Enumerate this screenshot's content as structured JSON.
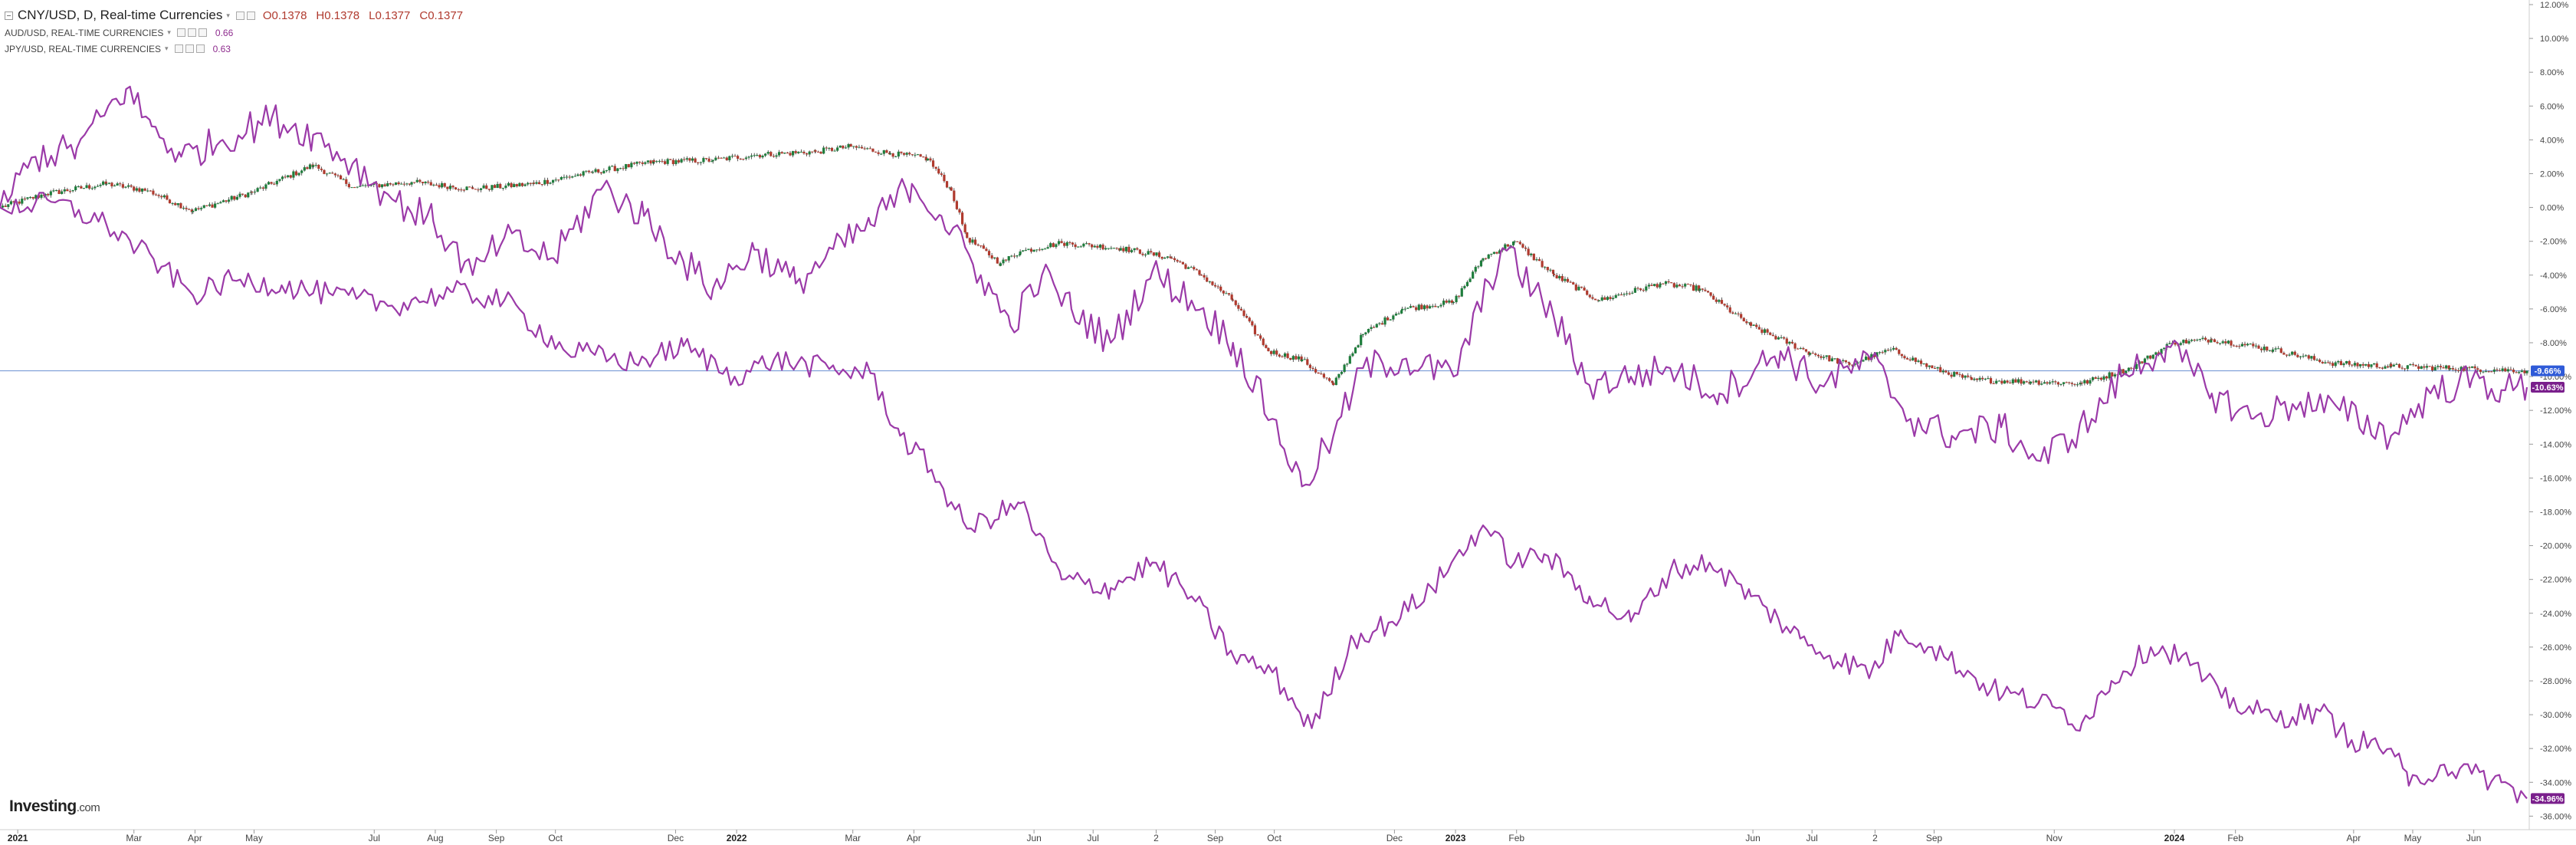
{
  "legend": {
    "main": {
      "title": "CNY/USD, D, Real-time Currencies",
      "open": "O0.1378",
      "high": "H0.1378",
      "low": "L0.1377",
      "close": "C0.1377"
    },
    "series": [
      {
        "label": "AUD/USD, REAL-TIME CURRENCIES",
        "value": "0.66"
      },
      {
        "label": "JPY/USD, REAL-TIME CURRENCIES",
        "value": "0.63"
      }
    ]
  },
  "logo": {
    "text": "Investing",
    "suffix": ".com"
  },
  "colors": {
    "candle_up": "#1e7d3c",
    "candle_down": "#b03a2e",
    "comparison_line": "#9b3aa8",
    "current_level_line": "#7a9cd6",
    "badge_blue": "#2f5bd8",
    "badge_purple": "#7a1f8c"
  },
  "badges": [
    {
      "text": "-9.66%",
      "value": -9.66,
      "color": "#2f5bd8"
    },
    {
      "text": "-10.63%",
      "value": -10.63,
      "color": "#7a1f8c"
    },
    {
      "text": "-34.96%",
      "value": -34.96,
      "color": "#7a1f8c"
    }
  ],
  "chart_data": {
    "type": "line",
    "description_of_scale": "percent",
    "ylim": [
      -36.8,
      12.0
    ],
    "y_ticks": [
      12,
      10,
      8,
      6,
      4,
      2,
      0,
      -2,
      -4,
      -6,
      -8,
      -10,
      -12,
      -14,
      -16,
      -18,
      -20,
      -22,
      -24,
      -26,
      -28,
      -30,
      -32,
      -34,
      -36
    ],
    "y_tick_labels": [
      "12.00%",
      "10.00%",
      "8.00%",
      "6.00%",
      "4.00%",
      "2.00%",
      "0.00%",
      "-2.00%",
      "-4.00%",
      "-6.00%",
      "-8.00%",
      "-10.00%",
      "-12.00%",
      "-14.00%",
      "-16.00%",
      "-18.00%",
      "-20.00%",
      "-22.00%",
      "-24.00%",
      "-26.00%",
      "-28.00%",
      "-30.00%",
      "-32.00%",
      "-34.00%",
      "-36.00%"
    ],
    "xlim": [
      "2020-12-23",
      "2024-06-28"
    ],
    "x_ticks": [
      {
        "label": "2021",
        "date": "2021-01-01",
        "bold": true
      },
      {
        "label": "Mar",
        "date": "2021-03-01"
      },
      {
        "label": "Apr",
        "date": "2021-04-01"
      },
      {
        "label": "May",
        "date": "2021-05-01"
      },
      {
        "label": "Jul",
        "date": "2021-07-01"
      },
      {
        "label": "Aug",
        "date": "2021-08-01"
      },
      {
        "label": "Sep",
        "date": "2021-09-01"
      },
      {
        "label": "Oct",
        "date": "2021-10-01"
      },
      {
        "label": "Dec",
        "date": "2021-12-01"
      },
      {
        "label": "2022",
        "date": "2022-01-01",
        "bold": true
      },
      {
        "label": "Mar",
        "date": "2022-03-01"
      },
      {
        "label": "Apr",
        "date": "2022-04-01"
      },
      {
        "label": "Jun",
        "date": "2022-06-01"
      },
      {
        "label": "Jul",
        "date": "2022-07-01"
      },
      {
        "label": "2",
        "date": "2022-08-02"
      },
      {
        "label": "Sep",
        "date": "2022-09-01"
      },
      {
        "label": "Oct",
        "date": "2022-10-01"
      },
      {
        "label": "Dec",
        "date": "2022-12-01"
      },
      {
        "label": "2023",
        "date": "2023-01-01",
        "bold": true
      },
      {
        "label": "Feb",
        "date": "2023-02-01"
      },
      {
        "label": "Jun",
        "date": "2023-06-01"
      },
      {
        "label": "Jul",
        "date": "2023-07-01"
      },
      {
        "label": "2",
        "date": "2023-08-02"
      },
      {
        "label": "Sep",
        "date": "2023-09-01"
      },
      {
        "label": "Nov",
        "date": "2023-11-01"
      },
      {
        "label": "2024",
        "date": "2024-01-01",
        "bold": true
      },
      {
        "label": "Feb",
        "date": "2024-02-01"
      },
      {
        "label": "Apr",
        "date": "2024-04-01"
      },
      {
        "label": "May",
        "date": "2024-05-01"
      },
      {
        "label": "Jun",
        "date": "2024-06-01"
      }
    ],
    "current_level": -9.66,
    "series": [
      {
        "name": "CNY/USD",
        "style": "candles",
        "points": [
          [
            "2020-12-23",
            0
          ],
          [
            "2021-01-15",
            0.8
          ],
          [
            "2021-02-15",
            1.4
          ],
          [
            "2021-03-08",
            1.0
          ],
          [
            "2021-03-31",
            -0.2
          ],
          [
            "2021-04-30",
            0.9
          ],
          [
            "2021-05-31",
            2.5
          ],
          [
            "2021-06-21",
            1.2
          ],
          [
            "2021-07-20",
            1.5
          ],
          [
            "2021-08-20",
            1.1
          ],
          [
            "2021-09-20",
            1.4
          ],
          [
            "2021-10-20",
            2.1
          ],
          [
            "2021-11-20",
            2.7
          ],
          [
            "2021-12-20",
            2.8
          ],
          [
            "2022-01-10",
            3.1
          ],
          [
            "2022-02-10",
            3.3
          ],
          [
            "2022-02-28",
            3.6
          ],
          [
            "2022-03-20",
            3.2
          ],
          [
            "2022-04-08",
            2.9
          ],
          [
            "2022-04-20",
            1.0
          ],
          [
            "2022-04-28",
            -1.8
          ],
          [
            "2022-05-15",
            -3.3
          ],
          [
            "2022-05-25",
            -2.6
          ],
          [
            "2022-06-15",
            -2.1
          ],
          [
            "2022-07-15",
            -2.4
          ],
          [
            "2022-08-10",
            -3.0
          ],
          [
            "2022-08-25",
            -4.0
          ],
          [
            "2022-09-10",
            -5.5
          ],
          [
            "2022-09-28",
            -8.5
          ],
          [
            "2022-10-15",
            -9.0
          ],
          [
            "2022-10-31",
            -10.5
          ],
          [
            "2022-11-15",
            -7.5
          ],
          [
            "2022-12-05",
            -6.0
          ],
          [
            "2022-12-31",
            -5.6
          ],
          [
            "2023-01-15",
            -3.0
          ],
          [
            "2023-01-31",
            -2.0
          ],
          [
            "2023-02-20",
            -4.0
          ],
          [
            "2023-03-15",
            -5.5
          ],
          [
            "2023-04-15",
            -4.5
          ],
          [
            "2023-05-05",
            -4.8
          ],
          [
            "2023-05-31",
            -7.0
          ],
          [
            "2023-06-30",
            -8.6
          ],
          [
            "2023-07-20",
            -9.3
          ],
          [
            "2023-08-10",
            -8.4
          ],
          [
            "2023-08-31",
            -9.5
          ],
          [
            "2023-09-20",
            -10.2
          ],
          [
            "2023-10-20",
            -10.3
          ],
          [
            "2023-11-15",
            -10.4
          ],
          [
            "2023-12-10",
            -9.5
          ],
          [
            "2023-12-31",
            -8.0
          ],
          [
            "2024-01-20",
            -7.8
          ],
          [
            "2024-02-20",
            -8.4
          ],
          [
            "2024-03-20",
            -9.2
          ],
          [
            "2024-04-20",
            -9.4
          ],
          [
            "2024-05-20",
            -9.5
          ],
          [
            "2024-06-28",
            -9.66
          ]
        ]
      },
      {
        "name": "AUD/USD",
        "style": "line",
        "points": [
          [
            "2020-12-23",
            0
          ],
          [
            "2021-01-10",
            3.0
          ],
          [
            "2021-01-31",
            3.5
          ],
          [
            "2021-02-25",
            7.0
          ],
          [
            "2021-03-10",
            4.8
          ],
          [
            "2021-03-25",
            3.0
          ],
          [
            "2021-04-15",
            4.0
          ],
          [
            "2021-05-10",
            5.3
          ],
          [
            "2021-05-31",
            4.3
          ],
          [
            "2021-06-20",
            2.6
          ],
          [
            "2021-07-10",
            0.5
          ],
          [
            "2021-07-31",
            -0.8
          ],
          [
            "2021-08-20",
            -4.0
          ],
          [
            "2021-09-05",
            -1.8
          ],
          [
            "2021-09-30",
            -3.0
          ],
          [
            "2021-10-25",
            1.2
          ],
          [
            "2021-11-15",
            -0.5
          ],
          [
            "2021-12-05",
            -3.2
          ],
          [
            "2021-12-20",
            -4.8
          ],
          [
            "2022-01-10",
            -2.5
          ],
          [
            "2022-01-31",
            -4.5
          ],
          [
            "2022-02-15",
            -3.0
          ],
          [
            "2022-03-10",
            -1.0
          ],
          [
            "2022-03-31",
            1.4
          ],
          [
            "2022-04-15",
            -0.5
          ],
          [
            "2022-05-05",
            -4.0
          ],
          [
            "2022-05-20",
            -7.0
          ],
          [
            "2022-06-05",
            -4.0
          ],
          [
            "2022-06-20",
            -6.0
          ],
          [
            "2022-07-10",
            -8.0
          ],
          [
            "2022-07-31",
            -3.8
          ],
          [
            "2022-08-20",
            -5.5
          ],
          [
            "2022-09-10",
            -8.0
          ],
          [
            "2022-09-30",
            -12.5
          ],
          [
            "2022-10-15",
            -16.5
          ],
          [
            "2022-10-31",
            -13.5
          ],
          [
            "2022-11-15",
            -9.5
          ],
          [
            "2022-12-05",
            -9.0
          ],
          [
            "2022-12-31",
            -10.0
          ],
          [
            "2023-01-25",
            -2.4
          ],
          [
            "2023-02-20",
            -6.5
          ],
          [
            "2023-03-10",
            -10.5
          ],
          [
            "2023-03-31",
            -10.0
          ],
          [
            "2023-04-20",
            -9.5
          ],
          [
            "2023-05-15",
            -11.0
          ],
          [
            "2023-06-15",
            -8.5
          ],
          [
            "2023-07-05",
            -10.5
          ],
          [
            "2023-07-31",
            -9.0
          ],
          [
            "2023-08-20",
            -12.5
          ],
          [
            "2023-09-10",
            -13.5
          ],
          [
            "2023-10-05",
            -13.0
          ],
          [
            "2023-10-25",
            -15.0
          ],
          [
            "2023-11-20",
            -12.5
          ],
          [
            "2023-12-05",
            -10.0
          ],
          [
            "2023-12-28",
            -8.2
          ],
          [
            "2024-01-20",
            -11.0
          ],
          [
            "2024-02-10",
            -12.5
          ],
          [
            "2024-03-05",
            -11.5
          ],
          [
            "2024-03-25",
            -12.0
          ],
          [
            "2024-04-20",
            -13.5
          ],
          [
            "2024-05-10",
            -11.0
          ],
          [
            "2024-05-31",
            -10.2
          ],
          [
            "2024-06-15",
            -10.8
          ],
          [
            "2024-06-28",
            -10.63
          ]
        ]
      },
      {
        "name": "JPY/USD",
        "style": "line",
        "points": [
          [
            "2020-12-23",
            0
          ],
          [
            "2021-01-20",
            0.3
          ],
          [
            "2021-02-15",
            -1.0
          ],
          [
            "2021-03-15",
            -3.5
          ],
          [
            "2021-03-31",
            -5.2
          ],
          [
            "2021-04-20",
            -4.3
          ],
          [
            "2021-05-15",
            -4.6
          ],
          [
            "2021-06-10",
            -5.2
          ],
          [
            "2021-07-10",
            -5.8
          ],
          [
            "2021-08-10",
            -5.0
          ],
          [
            "2021-09-05",
            -5.5
          ],
          [
            "2021-10-05",
            -8.4
          ],
          [
            "2021-11-10",
            -9.2
          ],
          [
            "2021-12-05",
            -8.2
          ],
          [
            "2021-12-31",
            -10.0
          ],
          [
            "2022-01-20",
            -9.0
          ],
          [
            "2022-02-20",
            -9.6
          ],
          [
            "2022-03-10",
            -9.8
          ],
          [
            "2022-03-25",
            -13.5
          ],
          [
            "2022-04-10",
            -15.5
          ],
          [
            "2022-04-28",
            -19.0
          ],
          [
            "2022-05-25",
            -17.5
          ],
          [
            "2022-06-15",
            -22.0
          ],
          [
            "2022-07-10",
            -22.5
          ],
          [
            "2022-07-31",
            -21.0
          ],
          [
            "2022-08-20",
            -23.0
          ],
          [
            "2022-09-10",
            -26.5
          ],
          [
            "2022-09-30",
            -27.5
          ],
          [
            "2022-10-20",
            -30.8
          ],
          [
            "2022-11-10",
            -25.5
          ],
          [
            "2022-11-30",
            -24.5
          ],
          [
            "2022-12-20",
            -22.5
          ],
          [
            "2023-01-15",
            -18.8
          ],
          [
            "2023-01-31",
            -21.0
          ],
          [
            "2023-02-15",
            -20.5
          ],
          [
            "2023-03-10",
            -23.0
          ],
          [
            "2023-03-31",
            -24.5
          ],
          [
            "2023-04-20",
            -21.5
          ],
          [
            "2023-05-10",
            -21.0
          ],
          [
            "2023-05-31",
            -23.0
          ],
          [
            "2023-06-25",
            -25.5
          ],
          [
            "2023-07-10",
            -26.5
          ],
          [
            "2023-07-31",
            -27.5
          ],
          [
            "2023-08-15",
            -25.0
          ],
          [
            "2023-08-31",
            -26.0
          ],
          [
            "2023-09-30",
            -28.5
          ],
          [
            "2023-10-31",
            -29.5
          ],
          [
            "2023-11-15",
            -30.5
          ],
          [
            "2023-11-30",
            -28.0
          ],
          [
            "2023-12-20",
            -26.0
          ],
          [
            "2024-01-05",
            -26.5
          ],
          [
            "2024-01-25",
            -29.0
          ],
          [
            "2024-02-20",
            -30.2
          ],
          [
            "2024-03-15",
            -29.8
          ],
          [
            "2024-03-31",
            -31.5
          ],
          [
            "2024-04-20",
            -32.0
          ],
          [
            "2024-04-29",
            -34.2
          ],
          [
            "2024-05-15",
            -33.0
          ],
          [
            "2024-05-31",
            -33.5
          ],
          [
            "2024-06-15",
            -34.0
          ],
          [
            "2024-06-28",
            -34.96
          ]
        ]
      }
    ]
  }
}
